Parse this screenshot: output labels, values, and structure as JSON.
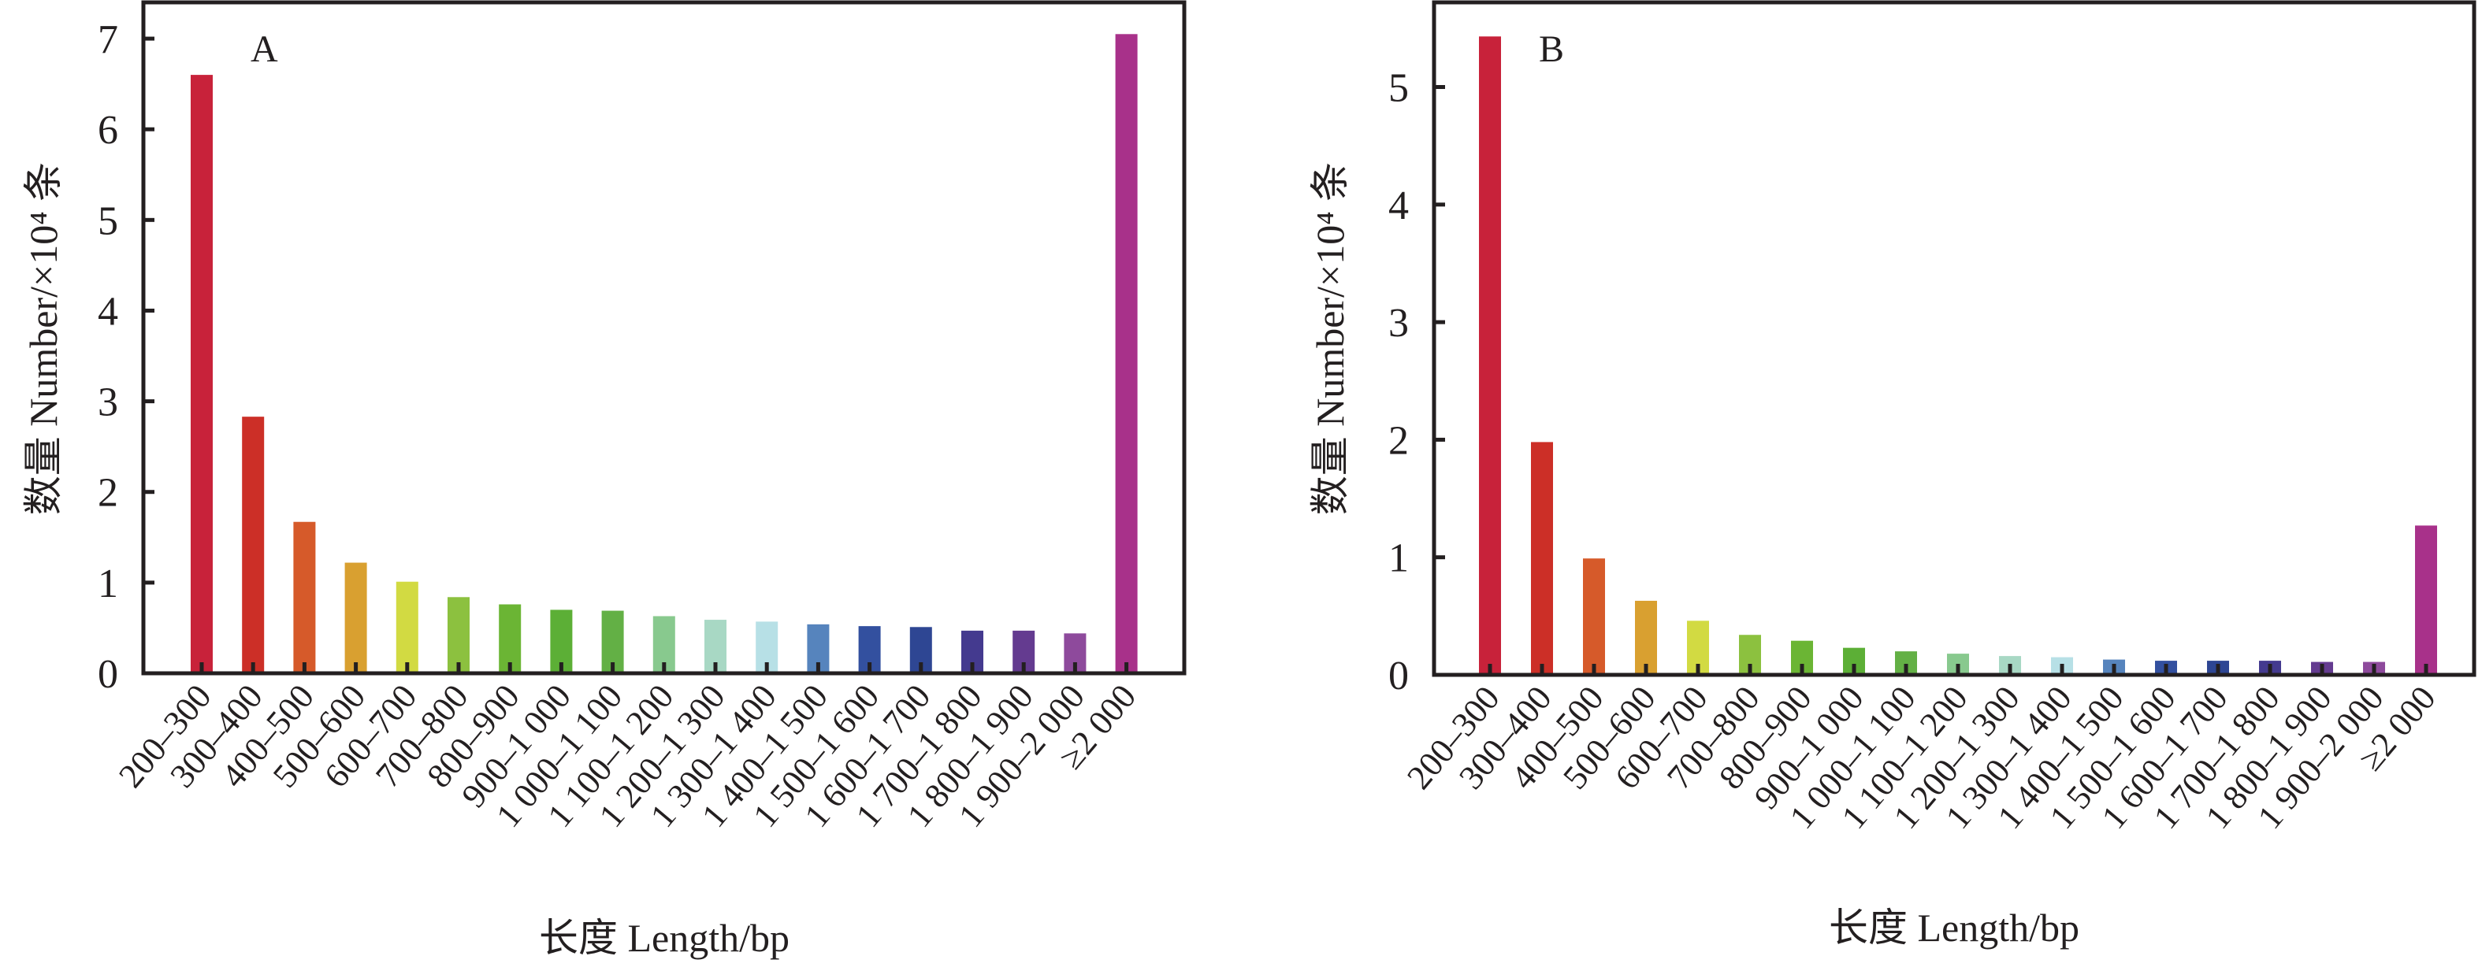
{
  "chart_data": [
    {
      "type": "bar",
      "panel": "A",
      "title": "",
      "xlabel": "长度 Length/bp",
      "ylabel": "数量 Number/×10⁴ 条",
      "ylim": [
        0,
        7.4
      ],
      "yticks": [
        0,
        1,
        2,
        3,
        4,
        5,
        6,
        7
      ],
      "grid": false,
      "legend": "none",
      "categories": [
        "200–300",
        "300–400",
        "400–500",
        "500–600",
        "600–700",
        "700–800",
        "800–900",
        "900–1 000",
        "1 000–1 100",
        "1 100–1 200",
        "1 200–1 300",
        "1 300–1 400",
        "1 400–1 500",
        "1 500–1 600",
        "1 600–1 700",
        "1 700–1 800",
        "1 800–1 900",
        "1 900–2 000",
        "≥2 000"
      ],
      "values": [
        6.6,
        2.83,
        1.67,
        1.22,
        1.01,
        0.84,
        0.76,
        0.7,
        0.69,
        0.63,
        0.59,
        0.57,
        0.54,
        0.52,
        0.51,
        0.47,
        0.47,
        0.44,
        7.05
      ],
      "colors": [
        "#c8223a",
        "#cc2f27",
        "#d65a2a",
        "#d9a030",
        "#d2da42",
        "#8cc13f",
        "#6bb534",
        "#5caf36",
        "#63b045",
        "#88c98e",
        "#a8d8c4",
        "#b7e0e6",
        "#5684bd",
        "#33509f",
        "#2e4693",
        "#443a8f",
        "#643b90",
        "#8e4a9c",
        "#a8318a"
      ]
    },
    {
      "type": "bar",
      "panel": "B",
      "title": "",
      "xlabel": "长度 Length/bp",
      "ylabel": "数量 Number/×10⁴ 条",
      "ylim": [
        0,
        5.72
      ],
      "yticks": [
        0,
        1,
        2,
        3,
        4,
        5
      ],
      "grid": false,
      "legend": "none",
      "categories": [
        "200–300",
        "300–400",
        "400–500",
        "500–600",
        "600–700",
        "700–800",
        "800–900",
        "900–1 000",
        "1 000–1 100",
        "1 100–1 200",
        "1 200–1 300",
        "1 300–1 400",
        "1 400–1 500",
        "1 500–1 600",
        "1 600–1 700",
        "1 700–1 800",
        "1 800–1 900",
        "1 900–2 000",
        "≥2 000"
      ],
      "values": [
        5.43,
        1.98,
        0.99,
        0.63,
        0.46,
        0.34,
        0.29,
        0.23,
        0.2,
        0.18,
        0.16,
        0.15,
        0.13,
        0.12,
        0.12,
        0.12,
        0.11,
        0.11,
        1.27
      ],
      "colors": [
        "#c8223a",
        "#cc2f27",
        "#d65a2a",
        "#d9a030",
        "#d2da42",
        "#8cc13f",
        "#6bb534",
        "#5caf36",
        "#63b045",
        "#88c98e",
        "#a8d8c4",
        "#b7e0e6",
        "#5684bd",
        "#33509f",
        "#2e4693",
        "#443a8f",
        "#643b90",
        "#8e4a9c",
        "#a8318a"
      ]
    }
  ]
}
